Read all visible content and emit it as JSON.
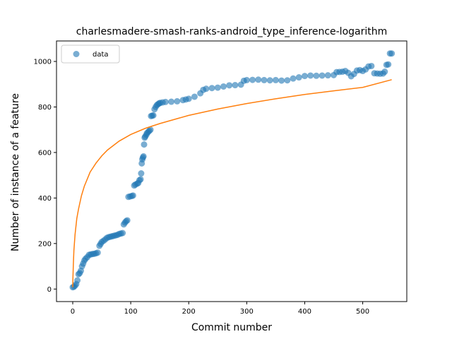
{
  "chart_data": {
    "type": "scatter",
    "title": "charlesmadere-smash-ranks-android_type_inference-logarithm",
    "xlabel": "Commit number",
    "ylabel": "Number of instance of a feature",
    "xlim": [
      -28,
      576
    ],
    "ylim": [
      -55,
      1090
    ],
    "xticks": [
      0,
      100,
      200,
      300,
      400,
      500
    ],
    "yticks": [
      0,
      200,
      400,
      600,
      800,
      1000
    ],
    "legend": {
      "position": "top-left",
      "entries": [
        "data"
      ]
    },
    "grid": false,
    "colors": {
      "data": "#1f77b4",
      "fit": "#ff7f0e"
    },
    "series": [
      {
        "name": "data",
        "kind": "scatter",
        "points": [
          [
            0,
            8
          ],
          [
            2,
            10
          ],
          [
            4,
            15
          ],
          [
            6,
            22
          ],
          [
            8,
            38
          ],
          [
            10,
            65
          ],
          [
            12,
            70
          ],
          [
            14,
            80
          ],
          [
            16,
            100
          ],
          [
            18,
            112
          ],
          [
            20,
            125
          ],
          [
            22,
            133
          ],
          [
            25,
            140
          ],
          [
            28,
            150
          ],
          [
            31,
            152
          ],
          [
            34,
            154
          ],
          [
            37,
            155
          ],
          [
            40,
            157
          ],
          [
            43,
            160
          ],
          [
            46,
            190
          ],
          [
            48,
            198
          ],
          [
            50,
            207
          ],
          [
            53,
            212
          ],
          [
            56,
            218
          ],
          [
            59,
            225
          ],
          [
            62,
            228
          ],
          [
            65,
            230
          ],
          [
            68,
            232
          ],
          [
            71,
            234
          ],
          [
            74,
            236
          ],
          [
            77,
            238
          ],
          [
            80,
            242
          ],
          [
            83,
            244
          ],
          [
            86,
            246
          ],
          [
            88,
            284
          ],
          [
            90,
            292
          ],
          [
            92,
            298
          ],
          [
            94,
            302
          ],
          [
            96,
            405
          ],
          [
            99,
            407
          ],
          [
            102,
            409
          ],
          [
            104,
            411
          ],
          [
            106,
            455
          ],
          [
            108,
            459
          ],
          [
            111,
            463
          ],
          [
            113,
            466
          ],
          [
            115,
            478
          ],
          [
            117,
            482
          ],
          [
            118,
            508
          ],
          [
            119,
            552
          ],
          [
            120,
            570
          ],
          [
            121,
            578
          ],
          [
            122,
            583
          ],
          [
            123,
            635
          ],
          [
            124,
            665
          ],
          [
            125,
            670
          ],
          [
            127,
            678
          ],
          [
            128,
            685
          ],
          [
            130,
            690
          ],
          [
            132,
            695
          ],
          [
            134,
            700
          ],
          [
            135,
            760
          ],
          [
            137,
            762
          ],
          [
            139,
            763
          ],
          [
            141,
            790
          ],
          [
            143,
            800
          ],
          [
            145,
            808
          ],
          [
            147,
            812
          ],
          [
            149,
            816
          ],
          [
            151,
            818
          ],
          [
            155,
            820
          ],
          [
            160,
            822
          ],
          [
            170,
            823
          ],
          [
            180,
            825
          ],
          [
            190,
            830
          ],
          [
            195,
            833
          ],
          [
            200,
            836
          ],
          [
            210,
            845
          ],
          [
            220,
            860
          ],
          [
            225,
            875
          ],
          [
            230,
            880
          ],
          [
            240,
            883
          ],
          [
            250,
            885
          ],
          [
            260,
            890
          ],
          [
            270,
            895
          ],
          [
            280,
            896
          ],
          [
            290,
            898
          ],
          [
            295,
            915
          ],
          [
            300,
            918
          ],
          [
            310,
            919
          ],
          [
            320,
            920
          ],
          [
            330,
            918
          ],
          [
            340,
            917
          ],
          [
            350,
            918
          ],
          [
            360,
            916
          ],
          [
            370,
            917
          ],
          [
            380,
            925
          ],
          [
            390,
            930
          ],
          [
            400,
            936
          ],
          [
            410,
            938
          ],
          [
            420,
            937
          ],
          [
            430,
            938
          ],
          [
            440,
            939
          ],
          [
            450,
            940
          ],
          [
            455,
            953
          ],
          [
            460,
            954
          ],
          [
            465,
            955
          ],
          [
            470,
            958
          ],
          [
            475,
            950
          ],
          [
            480,
            935
          ],
          [
            485,
            945
          ],
          [
            490,
            960
          ],
          [
            495,
            962
          ],
          [
            500,
            958
          ],
          [
            505,
            965
          ],
          [
            510,
            978
          ],
          [
            515,
            980
          ],
          [
            520,
            948
          ],
          [
            525,
            947
          ],
          [
            530,
            946
          ],
          [
            535,
            947
          ],
          [
            538,
            955
          ],
          [
            541,
            985
          ],
          [
            544,
            987
          ],
          [
            547,
            1035
          ],
          [
            550,
            1035
          ]
        ]
      },
      {
        "name": "",
        "kind": "line",
        "model": "logarithmic fit",
        "points": [
          [
            0,
            8
          ],
          [
            0.3,
            45
          ],
          [
            1,
            105
          ],
          [
            2,
            170
          ],
          [
            4,
            240
          ],
          [
            7,
            310
          ],
          [
            10,
            352
          ],
          [
            15,
            410
          ],
          [
            20,
            452
          ],
          [
            30,
            514
          ],
          [
            40,
            553
          ],
          [
            50,
            585
          ],
          [
            60,
            611
          ],
          [
            80,
            650
          ],
          [
            100,
            679
          ],
          [
            125,
            706
          ],
          [
            150,
            727
          ],
          [
            200,
            763
          ],
          [
            250,
            791
          ],
          [
            300,
            815
          ],
          [
            350,
            836
          ],
          [
            400,
            855
          ],
          [
            450,
            871
          ],
          [
            500,
            886
          ],
          [
            550,
            920
          ]
        ]
      }
    ]
  }
}
